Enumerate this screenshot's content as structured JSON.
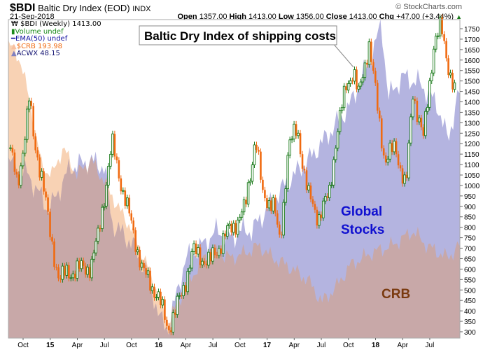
{
  "header": {
    "symbol": "$BDI",
    "name": "Baltic Dry Index (EOD)",
    "exchange": "INDX",
    "date": "21-Sep-2018",
    "open_label": "Open",
    "open": "1357.00",
    "high_label": "High",
    "high": "1413.00",
    "low_label": "Low",
    "low": "1356.00",
    "close_label": "Close",
    "close": "1413.00",
    "chg_label": "Chg",
    "chg": "+47.00 (+3.44%)",
    "brand": "© StockCharts.com"
  },
  "legend": [
    "$BDI (Weekly) 1413.00",
    "Volume undef",
    "EMA(50) undef",
    "$CRB 193.98",
    "ACWX 48.15"
  ],
  "annotations": {
    "box": "Baltic Dry Index of shipping costs",
    "global1": "Global",
    "global2": "Stocks",
    "crb": "CRB"
  },
  "colors": {
    "acwx": "#b4b4e0",
    "crb": "#f8d2b4",
    "overlap": "#c8a8a8",
    "up": "#1a7a1a",
    "down": "#f06a10",
    "blue": "#1010d0",
    "brown": "#7a3a10"
  },
  "chart_data": {
    "type": "line",
    "x_unit": "months since Jan 2014",
    "xlim": [
      7.37,
      57.33
    ],
    "ylim": [
      275,
      1775
    ],
    "yticks": [
      300,
      350,
      400,
      450,
      500,
      550,
      600,
      650,
      700,
      750,
      800,
      850,
      900,
      950,
      1000,
      1050,
      1100,
      1150,
      1200,
      1250,
      1300,
      1350,
      1400,
      1450,
      1500,
      1550,
      1600,
      1650,
      1700,
      1750
    ],
    "xticks": [
      {
        "m": 9,
        "label": "Oct",
        "bold": false
      },
      {
        "m": 12,
        "label": "15",
        "bold": true
      },
      {
        "m": 15,
        "label": "Apr",
        "bold": false
      },
      {
        "m": 18,
        "label": "Jul",
        "bold": false
      },
      {
        "m": 21,
        "label": "Oct",
        "bold": false
      },
      {
        "m": 24,
        "label": "16",
        "bold": true
      },
      {
        "m": 27,
        "label": "Apr",
        "bold": false
      },
      {
        "m": 30,
        "label": "Jul",
        "bold": false
      },
      {
        "m": 33,
        "label": "Oct",
        "bold": false
      },
      {
        "m": 36,
        "label": "17",
        "bold": true
      },
      {
        "m": 39,
        "label": "Apr",
        "bold": false
      },
      {
        "m": 42,
        "label": "Jul",
        "bold": false
      },
      {
        "m": 45,
        "label": "Oct",
        "bold": false
      },
      {
        "m": 48,
        "label": "18",
        "bold": true
      },
      {
        "m": 51,
        "label": "Apr",
        "bold": false
      },
      {
        "m": 54,
        "label": "Jul",
        "bold": false
      }
    ],
    "bdi": [
      [
        7.6,
        1180
      ],
      [
        8.38,
        980
      ],
      [
        9.7,
        1418
      ],
      [
        10.16,
        1218
      ],
      [
        11.09,
        1050
      ],
      [
        12.02,
        750
      ],
      [
        13.03,
        548
      ],
      [
        13.8,
        580
      ],
      [
        16.51,
        615
      ],
      [
        17.29,
        750
      ],
      [
        18.84,
        1200
      ],
      [
        20.0,
        983
      ],
      [
        21.16,
        782
      ],
      [
        22.32,
        580
      ],
      [
        23.87,
        480
      ],
      [
        25.03,
        313
      ],
      [
        26.58,
        480
      ],
      [
        27.75,
        682
      ],
      [
        29.68,
        632
      ],
      [
        31.23,
        750
      ],
      [
        32.39,
        816
      ],
      [
        33.55,
        883
      ],
      [
        34.72,
        1233
      ],
      [
        35.49,
        950
      ],
      [
        36.65,
        917
      ],
      [
        37.43,
        715
      ],
      [
        38.36,
        1184
      ],
      [
        39.36,
        1268
      ],
      [
        40.53,
        950
      ],
      [
        41.69,
        850
      ],
      [
        42.85,
        950
      ],
      [
        43.62,
        1218
      ],
      [
        44.79,
        1485
      ],
      [
        45.56,
        1552
      ],
      [
        46.1,
        1418
      ],
      [
        47.27,
        1686
      ],
      [
        48.27,
        1350
      ],
      [
        49.05,
        1117
      ],
      [
        50.21,
        1184
      ],
      [
        51.37,
        983
      ],
      [
        52.14,
        1450
      ],
      [
        53.31,
        1218
      ],
      [
        54.47,
        1686
      ],
      [
        55.24,
        1753
      ],
      [
        56.01,
        1586
      ],
      [
        56.94,
        1413
      ]
    ],
    "acwx": [
      [
        7.37,
        44.4
      ],
      [
        9.54,
        43.6
      ],
      [
        11.87,
        41.6
      ],
      [
        14.19,
        44
      ],
      [
        16.51,
        44.4
      ],
      [
        18.06,
        44
      ],
      [
        18.84,
        40.9
      ],
      [
        21.16,
        39.7
      ],
      [
        22.71,
        38.1
      ],
      [
        24.26,
        35.4
      ],
      [
        25.03,
        35
      ],
      [
        26.97,
        38.9
      ],
      [
        28.91,
        39.7
      ],
      [
        30.46,
        40.5
      ],
      [
        32.01,
        40.1
      ],
      [
        33.17,
        40.5
      ],
      [
        34.33,
        40.5
      ],
      [
        35.88,
        41.6
      ],
      [
        38.2,
        43.2
      ],
      [
        40.53,
        44.4
      ],
      [
        42.85,
        45.9
      ],
      [
        45.17,
        47.5
      ],
      [
        47.5,
        50.2
      ],
      [
        48.66,
        52
      ],
      [
        49.43,
        47.9
      ],
      [
        50.98,
        49.1
      ],
      [
        52.92,
        48.7
      ],
      [
        54.86,
        47.5
      ],
      [
        56.01,
        45.5
      ],
      [
        57.18,
        48.15
      ]
    ],
    "crb": [
      [
        7.37,
        277
      ],
      [
        8.77,
        269
      ],
      [
        9.93,
        249
      ],
      [
        11.09,
        226
      ],
      [
        12.25,
        223
      ],
      [
        13.42,
        234
      ],
      [
        14.96,
        223
      ],
      [
        16.51,
        229
      ],
      [
        18.06,
        220
      ],
      [
        19.61,
        209
      ],
      [
        21.16,
        200
      ],
      [
        22.71,
        186
      ],
      [
        24.26,
        171
      ],
      [
        25.03,
        163
      ],
      [
        26.58,
        174
      ],
      [
        28.91,
        189
      ],
      [
        30.46,
        191
      ],
      [
        32.01,
        189
      ],
      [
        33.55,
        191
      ],
      [
        35.1,
        194
      ],
      [
        36.65,
        189
      ],
      [
        38.2,
        186
      ],
      [
        40.53,
        180
      ],
      [
        42.07,
        171
      ],
      [
        43.62,
        177
      ],
      [
        45.17,
        186
      ],
      [
        47.5,
        191
      ],
      [
        49.82,
        194
      ],
      [
        52.14,
        200
      ],
      [
        53.69,
        194
      ],
      [
        56.01,
        189
      ],
      [
        57.18,
        193.98
      ]
    ],
    "acwx_scale": [
      35,
      52
    ],
    "crb_scale": [
      160,
      290
    ]
  }
}
